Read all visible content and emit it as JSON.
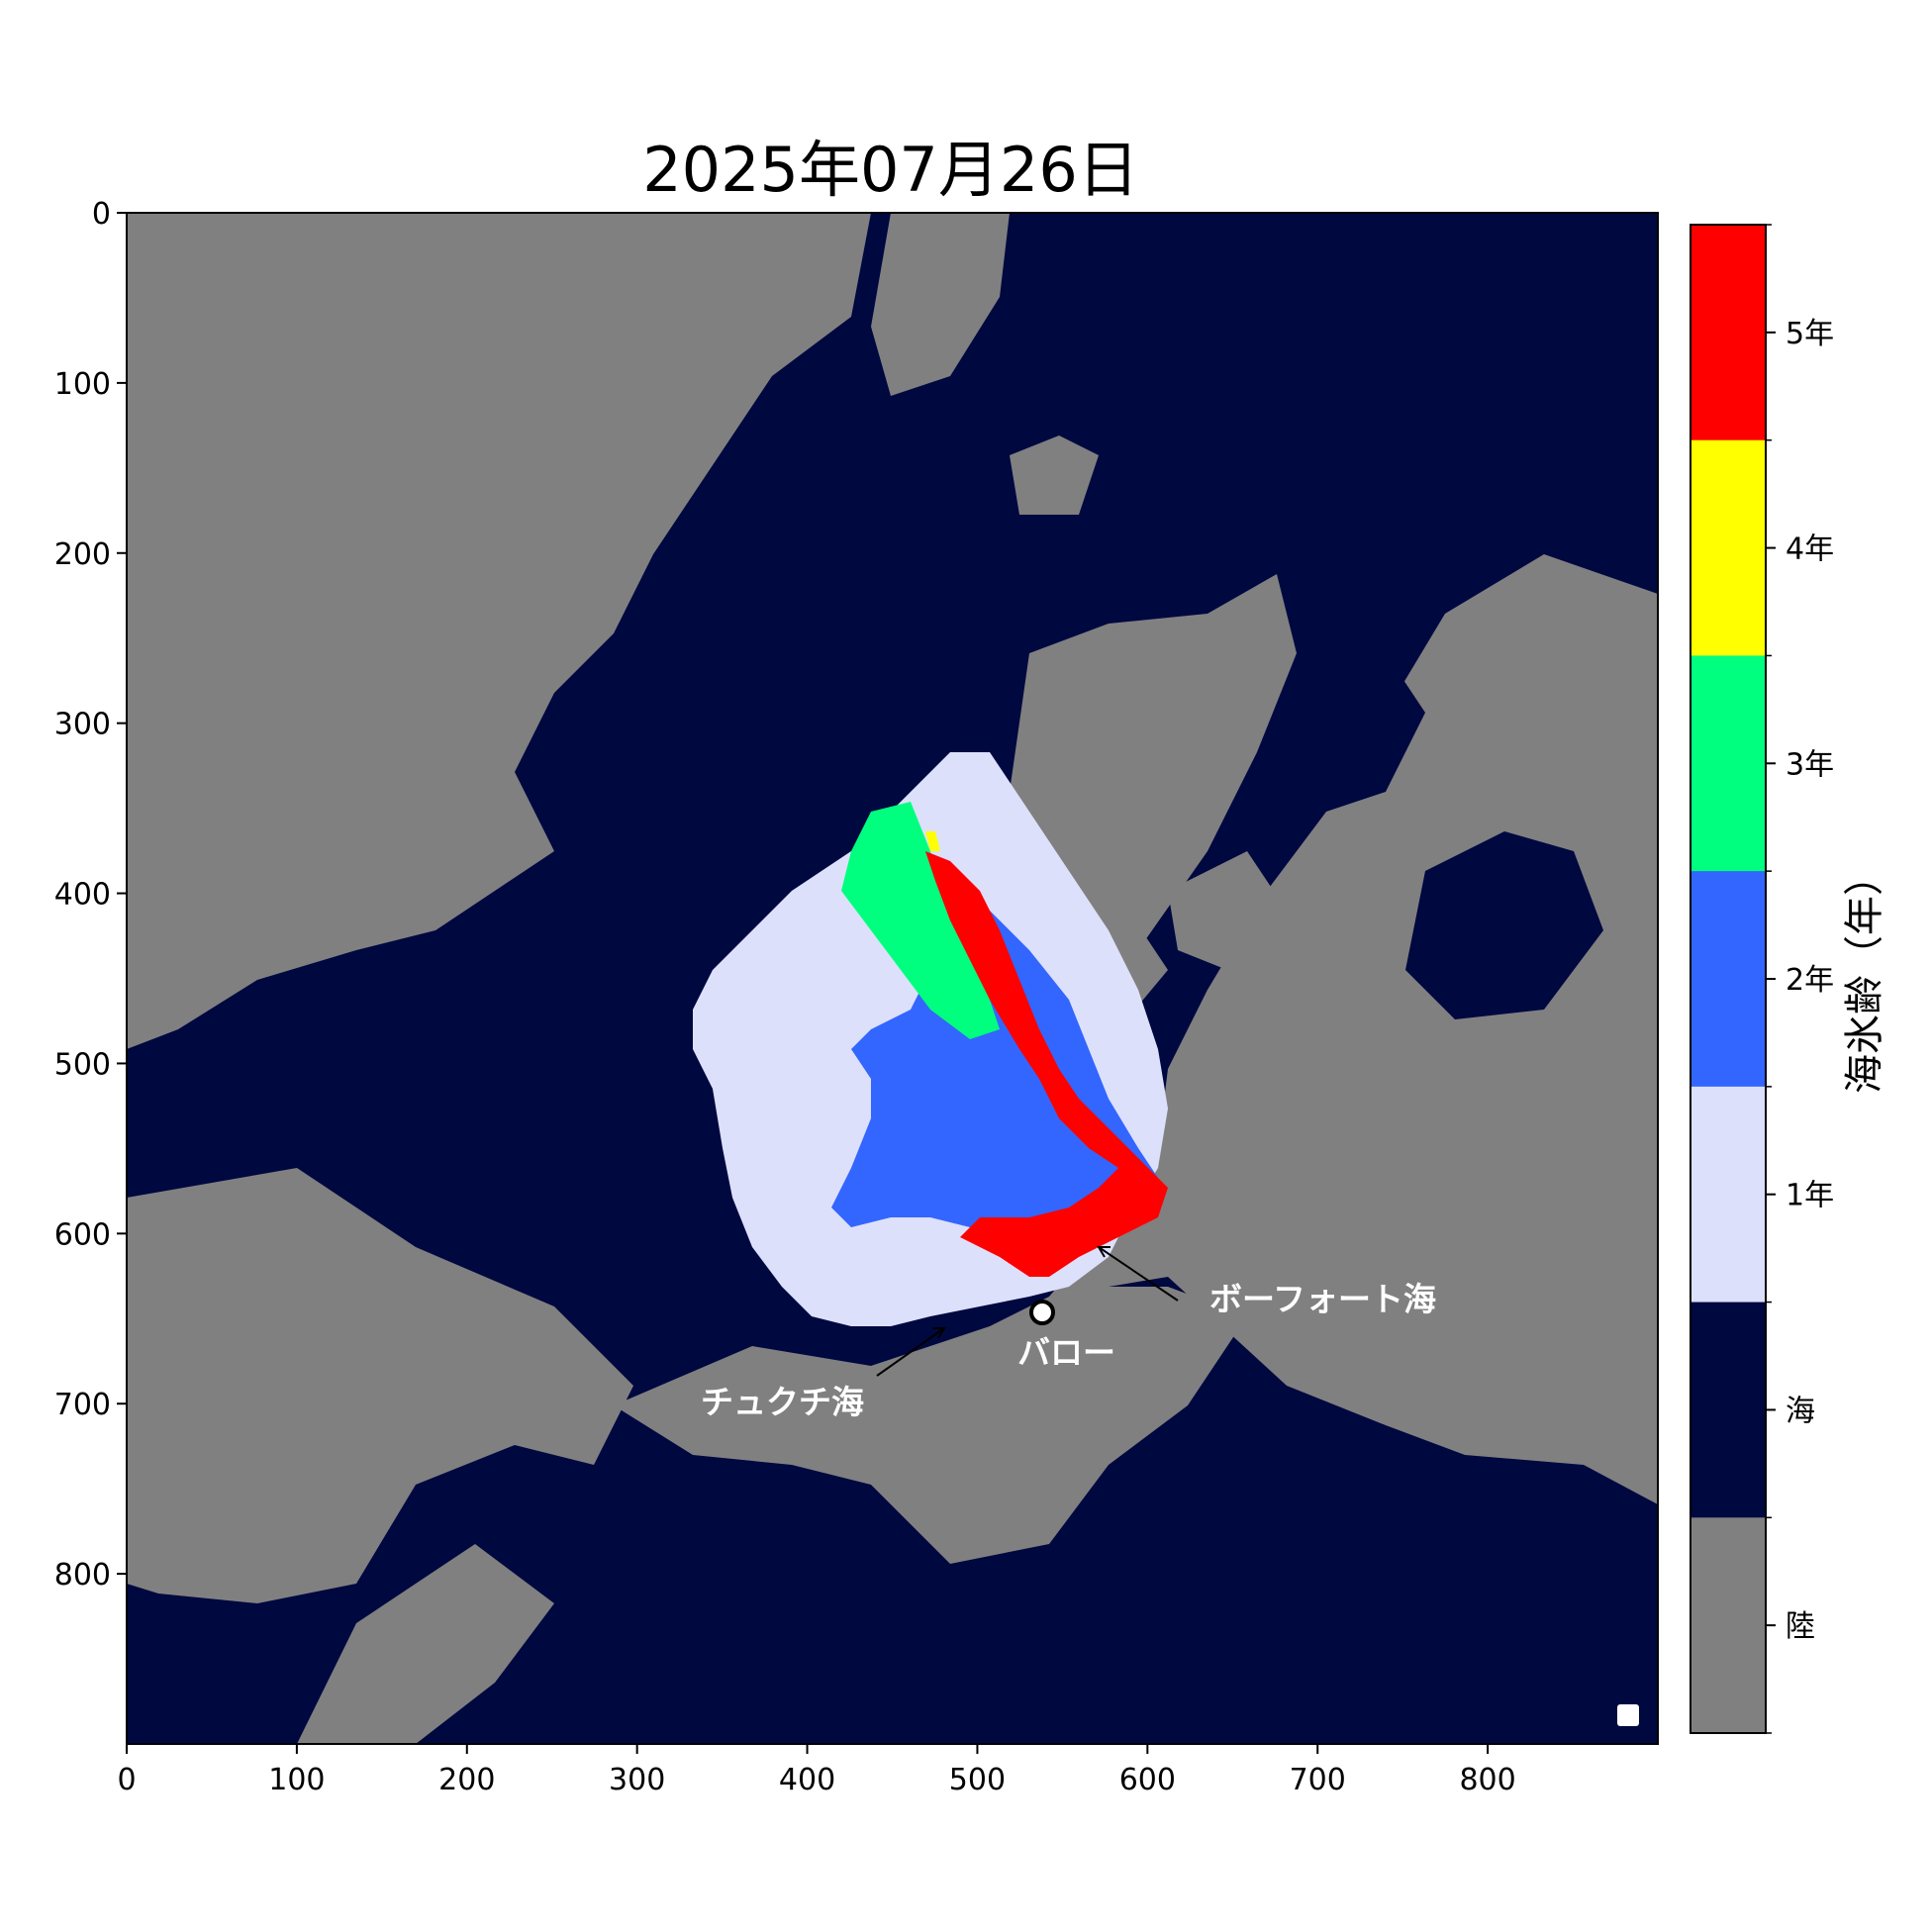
{
  "title": "2025年07月26日",
  "colors": {
    "land": "#808080",
    "sea": "#000840",
    "age1": "#dde0fb",
    "age2": "#3366ff",
    "age3": "#00ff7f",
    "age4": "#ffff00",
    "age5": "#ff0000",
    "annotation": "#ffffff"
  },
  "x_ticks": [
    "0",
    "100",
    "200",
    "300",
    "400",
    "500",
    "600",
    "700",
    "800"
  ],
  "y_ticks": [
    "0",
    "100",
    "200",
    "300",
    "400",
    "500",
    "600",
    "700",
    "800"
  ],
  "colorbar": {
    "label": "海氷齢（年）",
    "entries": [
      {
        "label": "5年",
        "color": "#ff0000"
      },
      {
        "label": "4年",
        "color": "#ffff00"
      },
      {
        "label": "3年",
        "color": "#00ff7f"
      },
      {
        "label": "2年",
        "color": "#3366ff"
      },
      {
        "label": "1年",
        "color": "#dde0fb"
      },
      {
        "label": "海",
        "color": "#000840"
      },
      {
        "label": "陸",
        "color": "#808080"
      }
    ]
  },
  "annotations": {
    "beaufort": "ボーフォート海",
    "barrow": "バロー",
    "chukchi": "チュクチ海"
  }
}
